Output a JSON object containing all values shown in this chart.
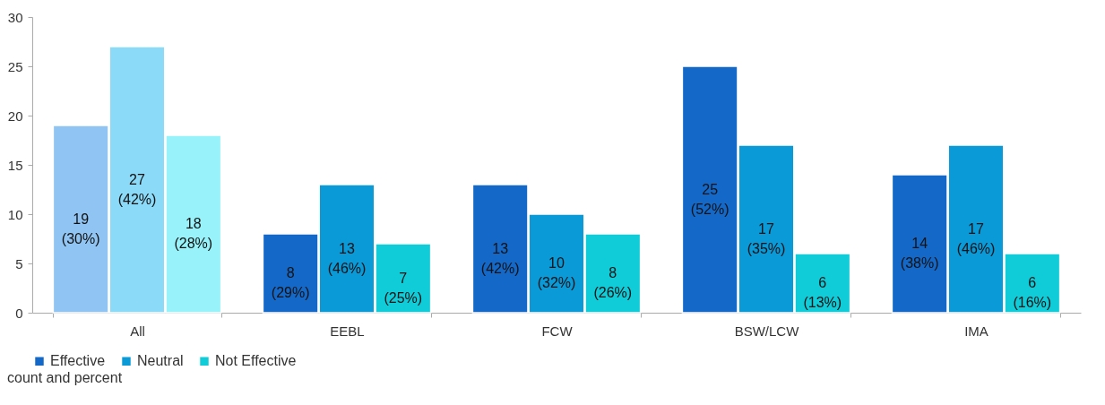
{
  "chart_data": {
    "type": "bar",
    "categories": [
      "All",
      "EEBL",
      "FCW",
      "BSW/LCW",
      "IMA"
    ],
    "series": [
      {
        "name": "Effective",
        "color": "#1469c8",
        "colors": [
          "#90c4f2",
          "#1469c8",
          "#1469c8",
          "#1469c8",
          "#1469c8"
        ],
        "values": [
          19,
          8,
          13,
          25,
          14
        ],
        "value_labels": [
          "19\n(30%)",
          "8\n(29%)",
          "13\n(42%)",
          "25\n(52%)",
          "14\n(38%)"
        ]
      },
      {
        "name": "Neutral",
        "color": "#0a9ad8",
        "colors": [
          "#8adaf8",
          "#0a9ad8",
          "#0a9ad8",
          "#0a9ad8",
          "#0a9ad8"
        ],
        "values": [
          27,
          13,
          10,
          17,
          17
        ],
        "value_labels": [
          "27\n(42%)",
          "13\n(46%)",
          "10\n(32%)",
          "17\n(35%)",
          "17\n(46%)"
        ]
      },
      {
        "name": "Not Effective",
        "color": "#10ccd8",
        "colors": [
          "#98f2fa",
          "#10ccd8",
          "#10ccd8",
          "#10ccd8",
          "#10ccd8"
        ],
        "values": [
          18,
          7,
          8,
          6,
          6
        ],
        "value_labels": [
          "18\n(28%)",
          "7\n(25%)",
          "8\n(26%)",
          "6\n(13%)",
          "6\n(16%)"
        ]
      }
    ],
    "ylim": [
      0,
      30
    ],
    "yticks": [
      0,
      5,
      10,
      15,
      20,
      25,
      30
    ],
    "grid": false,
    "legend": "bottom",
    "annotations": [
      "count and percent"
    ]
  }
}
